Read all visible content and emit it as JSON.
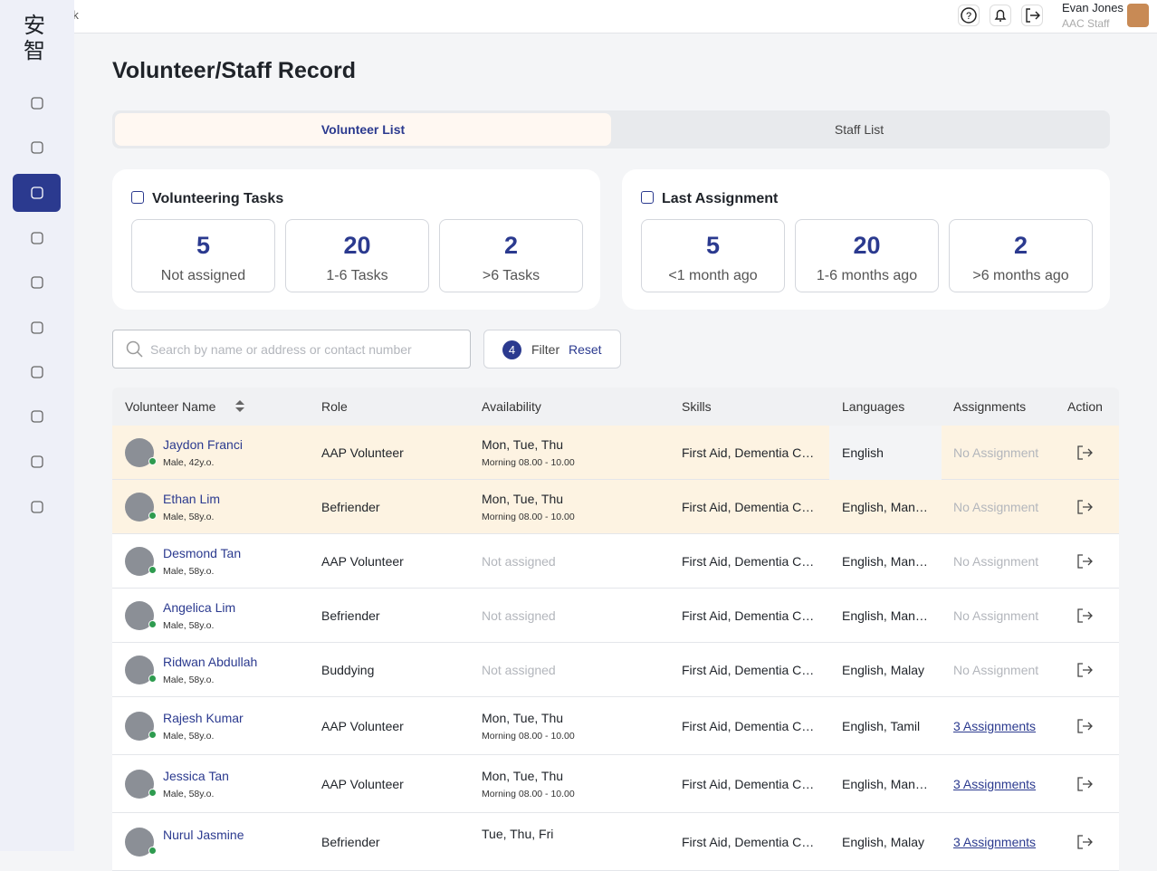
{
  "header": {
    "back": "Back",
    "user_name": "Evan Jones",
    "user_role": "AAC Staff"
  },
  "sidebar": {
    "logo": "安智"
  },
  "page_title": "Volunteer/Staff Record",
  "tabs": [
    "Volunteer List",
    "Staff List"
  ],
  "summary": [
    {
      "title": "Volunteering Tasks",
      "stats": [
        {
          "value": "5",
          "label": "Not assigned"
        },
        {
          "value": "20",
          "label": "1-6 Tasks"
        },
        {
          "value": "2",
          "label": ">6 Tasks"
        }
      ]
    },
    {
      "title": "Last Assignment",
      "stats": [
        {
          "value": "5",
          "label": "<1 month ago"
        },
        {
          "value": "20",
          "label": "1-6 months ago"
        },
        {
          "value": "2",
          "label": ">6 months ago"
        }
      ]
    }
  ],
  "search": {
    "placeholder": "Search by name or address or contact number"
  },
  "filter": {
    "count": "4",
    "label": "Filter",
    "reset": "Reset"
  },
  "table": {
    "columns": [
      "Volunteer Name",
      "Role",
      "Availability",
      "Skills",
      "Languages",
      "Assignments",
      "Action"
    ],
    "rows": [
      {
        "name": "Jaydon Franci",
        "details": "Male, 42y.o.",
        "role": "AAP Volunteer",
        "availability": "Mon, Tue, Thu",
        "time": "Morning 08.00 - 10.00",
        "skills": "First Aid, Dementia C…",
        "languages": "English",
        "assignments": "No Assignment"
      },
      {
        "name": "Ethan Lim",
        "details": "Male, 58y.o.",
        "role": "Befriender",
        "availability": "Mon, Tue, Thu",
        "time": "Morning 08.00 - 10.00",
        "skills": "First Aid, Dementia C…",
        "languages": "English, Man…",
        "assignments": "No Assignment"
      },
      {
        "name": "Desmond Tan",
        "details": "Male, 58y.o.",
        "role": "AAP Volunteer",
        "availability": "Not assigned",
        "skills": "First Aid, Dementia C…",
        "languages": "English, Man…",
        "assignments": "No Assignment"
      },
      {
        "name": "Angelica Lim",
        "details": "Male, 58y.o.",
        "role": "Befriender",
        "availability": "Not assigned",
        "skills": "First Aid, Dementia C…",
        "languages": "English, Man…",
        "assignments": "No Assignment"
      },
      {
        "name": "Ridwan Abdullah",
        "details": "Male, 58y.o.",
        "role": "Buddying",
        "availability": "Not assigned",
        "skills": "First Aid, Dementia C…",
        "languages": "English, Malay",
        "assignments": "No Assignment"
      },
      {
        "name": "Rajesh Kumar",
        "details": "Male, 58y.o.",
        "role": "AAP Volunteer",
        "availability": "Mon, Tue, Thu",
        "time": "Morning 08.00 - 10.00",
        "skills": "First Aid, Dementia C…",
        "languages": "English, Tamil",
        "assignments": "3 Assignments"
      },
      {
        "name": "Jessica Tan",
        "details": "Male, 58y.o.",
        "role": "AAP Volunteer",
        "availability": "Mon, Tue, Thu",
        "time": "Morning 08.00 - 10.00",
        "skills": "First Aid, Dementia C…",
        "languages": "English, Man…",
        "assignments": "3 Assignments"
      },
      {
        "name": "Nurul Jasmine",
        "role": "Befriender",
        "availability": "Tue, Thu, Fri",
        "skills": "First Aid, Dementia C…",
        "languages": "English, Malay",
        "assignments": "3 Assignments"
      }
    ]
  }
}
